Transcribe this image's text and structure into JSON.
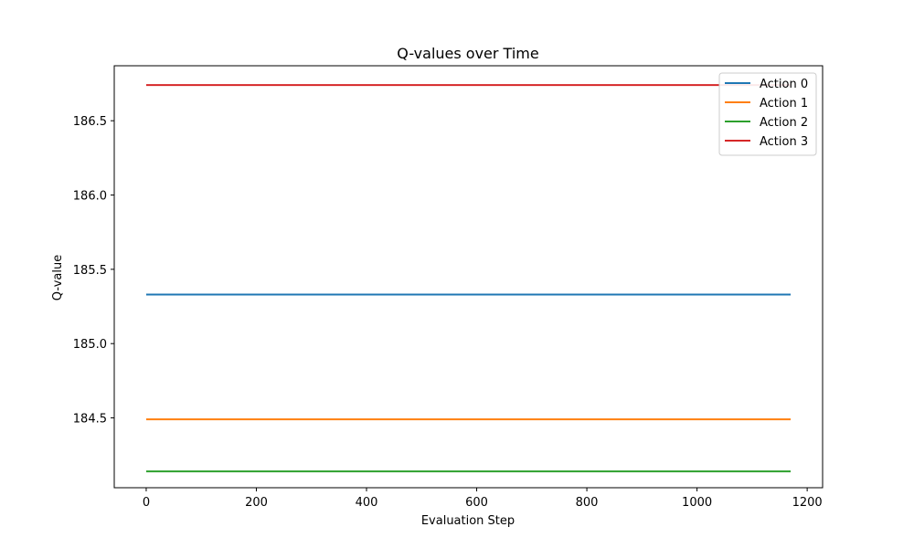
{
  "chart_data": {
    "type": "line",
    "title": "Q-values over Time",
    "xlabel": "Evaluation Step",
    "ylabel": "Q-value",
    "xlim": [
      -58,
      1228
    ],
    "ylim": [
      184.03,
      186.87
    ],
    "x_ticks": [
      0,
      200,
      400,
      600,
      800,
      1000,
      1200
    ],
    "y_ticks": [
      184.5,
      185.0,
      185.5,
      186.0,
      186.5
    ],
    "x_tick_labels": [
      "0",
      "200",
      "400",
      "600",
      "800",
      "1000",
      "1200"
    ],
    "y_tick_labels": [
      "184.5",
      "185.0",
      "185.5",
      "186.0",
      "186.5"
    ],
    "grid": false,
    "legend_position": "top-right",
    "x": [
      0,
      1170
    ],
    "series": [
      {
        "name": "Action 0",
        "color": "#1f77b4",
        "values": [
          185.33,
          185.33
        ]
      },
      {
        "name": "Action 1",
        "color": "#ff7f0e",
        "values": [
          184.49,
          184.49
        ]
      },
      {
        "name": "Action 2",
        "color": "#2ca02c",
        "values": [
          184.14,
          184.14
        ]
      },
      {
        "name": "Action 3",
        "color": "#d62728",
        "values": [
          186.74,
          186.74
        ]
      }
    ]
  }
}
